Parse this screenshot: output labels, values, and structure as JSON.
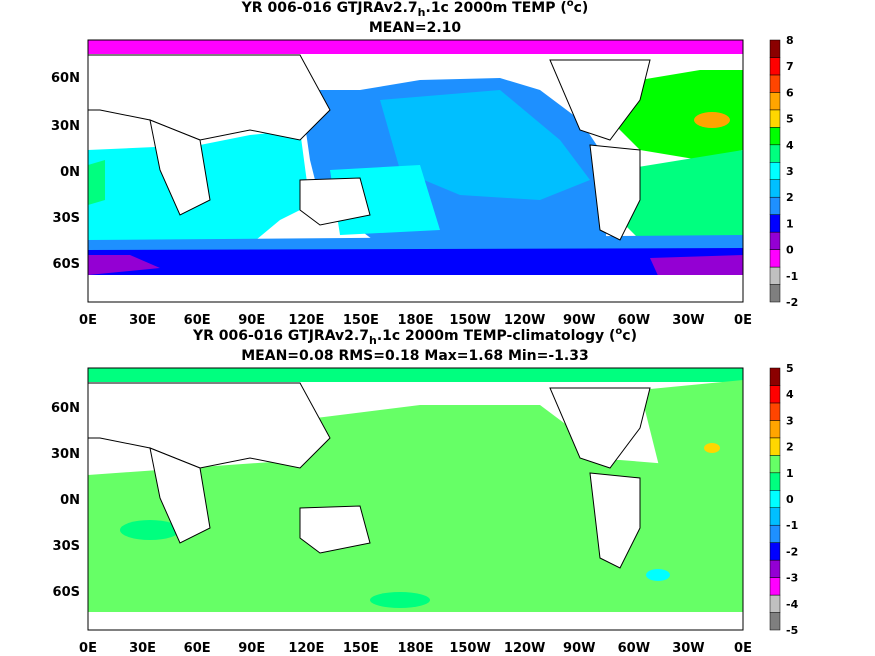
{
  "panels": [
    {
      "title_prefix": "YR 006-016 GTJRAv2.7",
      "title_sub": "h",
      "title_suffix": ".1c 2000m TEMP (",
      "title_deg": "o",
      "title_end": "c)",
      "subtitle": "MEAN=2.10",
      "colorbar": {
        "levels": [
          "-2",
          "-1",
          "0",
          "1",
          "2",
          "3",
          "4",
          "5",
          "6",
          "7",
          "8"
        ],
        "colors": [
          "#7f7f7f",
          "#c0c0c0",
          "#ff00ff",
          "#9400d3",
          "#0000ff",
          "#1e90ff",
          "#00bfff",
          "#00ffff",
          "#00ff7f",
          "#00ff00",
          "#ffd700",
          "#ffa500",
          "#ff4500",
          "#ff0000",
          "#8b0000"
        ]
      }
    },
    {
      "title_prefix": "YR 006-016 GTJRAv2.7",
      "title_sub": "h",
      "title_suffix": ".1c 2000m TEMP-climatology (",
      "title_deg": "o",
      "title_end": "c)",
      "subtitle": "MEAN=0.08   RMS=0.18   Max=1.68   Min=-1.33",
      "colorbar": {
        "levels": [
          "-5",
          "-4",
          "-3",
          "-2",
          "-1",
          "0",
          "1",
          "2",
          "3",
          "4",
          "5"
        ],
        "colors": [
          "#7f7f7f",
          "#c0c0c0",
          "#ff00ff",
          "#9400d3",
          "#0000ff",
          "#1e90ff",
          "#00bfff",
          "#00ffff",
          "#00ff7f",
          "#66ff66",
          "#ffd700",
          "#ffa500",
          "#ff4500",
          "#ff0000",
          "#8b0000"
        ]
      }
    }
  ],
  "map": {
    "x_ticks": [
      "0E",
      "30E",
      "60E",
      "90E",
      "120E",
      "150E",
      "180E",
      "150W",
      "120W",
      "90W",
      "60W",
      "30W",
      "0E"
    ],
    "y_ticks": [
      "60N",
      "30N",
      "0N",
      "30S",
      "60S"
    ]
  }
}
